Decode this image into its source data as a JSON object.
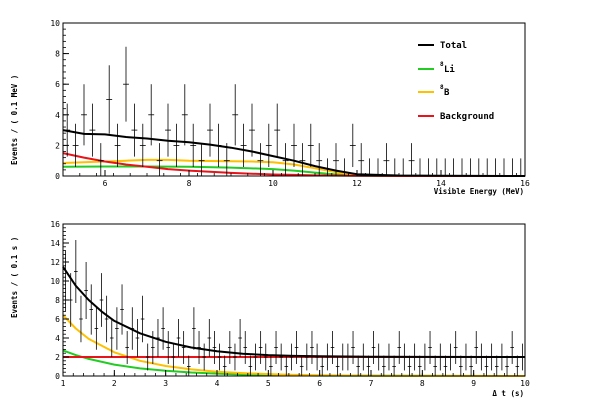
{
  "chart_data": [
    {
      "type": "line",
      "ylabel": "Events / ( 0.1 MeV )",
      "xlabel": "Visible Energy (MeV)",
      "xlim": [
        5,
        16
      ],
      "ylim": [
        0,
        10
      ],
      "xticks": [
        6,
        8,
        10,
        12,
        14,
        16
      ],
      "yticks": [
        0,
        2,
        4,
        6,
        8,
        10
      ],
      "grid": false,
      "legend": {
        "placement": "top-right",
        "entries": [
          {
            "label": "Total",
            "color": "#000000"
          },
          {
            "label": "Li",
            "sup": "8",
            "color": "#22cc22"
          },
          {
            "label": "B",
            "sup": "8",
            "color": "#ffc000"
          },
          {
            "label": "Background",
            "color": "#e8141a"
          }
        ]
      },
      "series": [
        {
          "name": "Total",
          "color": "#000000",
          "x": [
            5.0,
            5.5,
            6.0,
            6.5,
            7.0,
            7.5,
            8.0,
            8.5,
            9.0,
            9.5,
            10.0,
            10.5,
            11.0,
            11.5,
            12.0,
            13.0,
            14.0,
            16.0
          ],
          "y": [
            3.0,
            2.75,
            2.72,
            2.55,
            2.45,
            2.3,
            2.2,
            2.05,
            1.85,
            1.6,
            1.3,
            1.0,
            0.65,
            0.35,
            0.12,
            0.03,
            0.01,
            0.0
          ]
        },
        {
          "name": "Li",
          "color": "#22cc22",
          "x": [
            5.0,
            6.0,
            7.0,
            8.0,
            9.0,
            10.0,
            10.5,
            11.0,
            11.5,
            12.0,
            13.0,
            16.0
          ],
          "y": [
            0.6,
            0.62,
            0.62,
            0.6,
            0.55,
            0.45,
            0.35,
            0.22,
            0.1,
            0.03,
            0.0,
            0.0
          ]
        },
        {
          "name": "B",
          "color": "#ffc000",
          "x": [
            5.0,
            5.5,
            6.0,
            6.5,
            7.0,
            7.5,
            8.0,
            8.5,
            9.0,
            9.5,
            10.0,
            10.5,
            11.0,
            11.5,
            12.0,
            13.0,
            16.0
          ],
          "y": [
            0.85,
            0.9,
            0.95,
            1.0,
            1.05,
            1.05,
            1.0,
            0.98,
            0.97,
            0.95,
            0.9,
            0.75,
            0.5,
            0.25,
            0.08,
            0.0,
            0.0
          ]
        },
        {
          "name": "Background",
          "color": "#e8141a",
          "x": [
            5.0,
            5.5,
            6.0,
            6.5,
            7.0,
            7.5,
            8.0,
            8.5,
            9.0,
            9.5,
            10.0,
            10.5,
            11.0,
            12.0,
            13.0,
            16.0
          ],
          "y": [
            1.5,
            1.2,
            0.95,
            0.75,
            0.6,
            0.45,
            0.35,
            0.28,
            0.2,
            0.15,
            0.1,
            0.07,
            0.04,
            0.01,
            0.0,
            0.0
          ]
        },
        {
          "name": "Data",
          "type": "errorbar",
          "color": "#000000",
          "x": [
            5.1,
            5.3,
            5.5,
            5.7,
            5.9,
            6.1,
            6.3,
            6.5,
            6.7,
            6.9,
            7.1,
            7.3,
            7.5,
            7.7,
            7.9,
            8.1,
            8.3,
            8.5,
            8.7,
            8.9,
            9.1,
            9.3,
            9.5,
            9.7,
            9.9,
            10.1,
            10.3,
            10.5,
            10.7,
            10.9,
            11.1,
            11.3,
            11.5,
            11.7,
            11.9,
            12.1,
            12.3,
            12.5,
            12.7,
            12.9,
            13.1,
            13.3,
            13.5,
            13.7,
            13.9,
            14.1,
            14.3,
            14.5,
            14.7,
            14.9,
            15.1,
            15.3,
            15.5,
            15.7,
            15.9
          ],
          "y": [
            3,
            2,
            4,
            3,
            1,
            5,
            2,
            6,
            3,
            2,
            4,
            1,
            3,
            2,
            4,
            2,
            1,
            3,
            2,
            1,
            4,
            2,
            3,
            1,
            2,
            3,
            1,
            2,
            1,
            2,
            1,
            0,
            1,
            0,
            2,
            1,
            0,
            0,
            1,
            0,
            0,
            1,
            0,
            0,
            0,
            0,
            0,
            0,
            0,
            0,
            0,
            0,
            0,
            0,
            0
          ]
        }
      ]
    },
    {
      "type": "line",
      "ylabel": "Events / ( 0.1 s )",
      "xlabel": "Δ t (s)",
      "xlim": [
        1,
        10
      ],
      "ylim": [
        0,
        16
      ],
      "xticks": [
        1,
        2,
        3,
        4,
        5,
        6,
        7,
        8,
        9,
        10
      ],
      "yticks": [
        0,
        2,
        4,
        6,
        8,
        10,
        12,
        14,
        16
      ],
      "grid": false,
      "series": [
        {
          "name": "Total",
          "color": "#000000",
          "x": [
            1.0,
            1.25,
            1.5,
            1.75,
            2.0,
            2.5,
            3.0,
            3.5,
            4.0,
            4.5,
            5.0,
            5.5,
            6.0,
            7.0,
            8.0,
            10.0
          ],
          "y": [
            11.5,
            9.5,
            8.0,
            6.8,
            5.8,
            4.5,
            3.6,
            3.0,
            2.6,
            2.35,
            2.2,
            2.12,
            2.08,
            2.03,
            2.01,
            2.0
          ]
        },
        {
          "name": "Li",
          "color": "#22cc22",
          "x": [
            1.0,
            1.25,
            1.5,
            2.0,
            2.5,
            3.0,
            3.5,
            4.0,
            4.5,
            5.0,
            6.0,
            10.0
          ],
          "y": [
            2.7,
            2.2,
            1.8,
            1.2,
            0.8,
            0.55,
            0.37,
            0.25,
            0.16,
            0.1,
            0.04,
            0.0
          ]
        },
        {
          "name": "B",
          "color": "#ffc000",
          "x": [
            1.0,
            1.25,
            1.5,
            2.0,
            2.5,
            3.0,
            3.5,
            4.0,
            4.5,
            5.0,
            5.5,
            6.0,
            7.0,
            10.0
          ],
          "y": [
            6.4,
            5.0,
            3.9,
            2.5,
            1.6,
            1.05,
            0.7,
            0.45,
            0.3,
            0.2,
            0.12,
            0.07,
            0.02,
            0.0
          ]
        },
        {
          "name": "Background",
          "color": "#e8141a",
          "x": [
            1.0,
            10.0
          ],
          "y": [
            2.0,
            2.0
          ]
        },
        {
          "name": "Data",
          "type": "errorbar",
          "color": "#000000",
          "x": [
            1.05,
            1.15,
            1.25,
            1.35,
            1.45,
            1.55,
            1.65,
            1.75,
            1.85,
            1.95,
            2.05,
            2.15,
            2.25,
            2.35,
            2.45,
            2.55,
            2.65,
            2.75,
            2.85,
            2.95,
            3.05,
            3.15,
            3.25,
            3.35,
            3.45,
            3.55,
            3.65,
            3.75,
            3.85,
            3.95,
            4.05,
            4.15,
            4.25,
            4.35,
            4.45,
            4.55,
            4.65,
            4.75,
            4.85,
            4.95,
            5.05,
            5.15,
            5.25,
            5.35,
            5.45,
            5.55,
            5.65,
            5.75,
            5.85,
            5.95,
            6.05,
            6.15,
            6.25,
            6.35,
            6.45,
            6.55,
            6.65,
            6.75,
            6.85,
            6.95,
            7.05,
            7.15,
            7.25,
            7.35,
            7.45,
            7.55,
            7.65,
            7.75,
            7.85,
            7.95,
            8.05,
            8.15,
            8.25,
            8.35,
            8.45,
            8.55,
            8.65,
            8.75,
            8.85,
            8.95,
            9.05,
            9.15,
            9.25,
            9.35,
            9.45,
            9.55,
            9.65,
            9.75,
            9.85,
            9.95
          ],
          "y": [
            10,
            8,
            11,
            6,
            9,
            7,
            5,
            8,
            6,
            4,
            5,
            7,
            3,
            5,
            4,
            6,
            2,
            3,
            4,
            5,
            3,
            2,
            4,
            3,
            1,
            5,
            3,
            2,
            4,
            3,
            2,
            1,
            3,
            2,
            4,
            3,
            1,
            2,
            3,
            2,
            1,
            3,
            2,
            1,
            2,
            3,
            1,
            2,
            3,
            2,
            1,
            2,
            3,
            1,
            2,
            2,
            3,
            1,
            2,
            1,
            3,
            2,
            1,
            2,
            1,
            3,
            2,
            1,
            2,
            1,
            2,
            3,
            1,
            2,
            1,
            2,
            3,
            1,
            2,
            1,
            3,
            2,
            1,
            2,
            1,
            2,
            1,
            3,
            1,
            2
          ]
        }
      ]
    }
  ]
}
